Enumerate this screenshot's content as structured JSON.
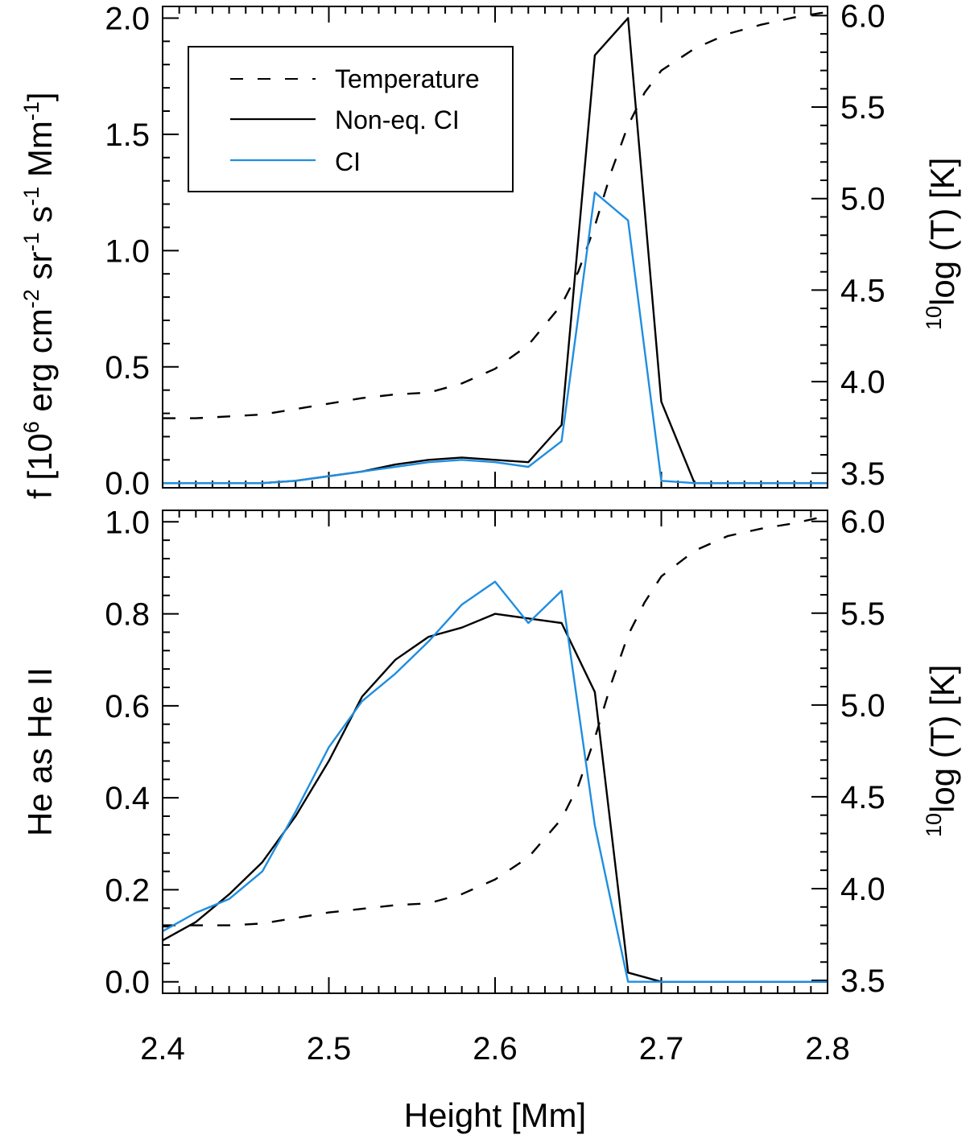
{
  "chart_data": [
    {
      "type": "line",
      "panel": "top",
      "title": "",
      "xlabel": "",
      "ylabel": "f [10^6 erg cm^-2 sr^-1 s^-1 Mm^-1]",
      "ylabel_parts": {
        "prefix": "f [10",
        "e1": "6",
        "t2": " erg cm",
        "e2": "-2",
        "t3": " sr",
        "e3": "-1",
        "t4": " s",
        "e4": "-1",
        "t5": " Mm",
        "e5": "-1",
        "suffix": "]"
      },
      "y2label": "10log (T) [K]",
      "y2label_parts": {
        "sup": "10",
        "text": "log (T) [K]"
      },
      "xlim": [
        2.4,
        2.8
      ],
      "ylim": [
        -0.02,
        2.05
      ],
      "y2lim": [
        3.42,
        6.05
      ],
      "yticks": [
        "0.0",
        "0.5",
        "1.0",
        "1.5",
        "2.0"
      ],
      "y2ticks": [
        "3.5",
        "4.0",
        "4.5",
        "5.0",
        "5.5",
        "6.0"
      ],
      "legend": {
        "position": "top-left",
        "entries": [
          "Temperature",
          "Non-eq. CI",
          "CI"
        ]
      },
      "series": [
        {
          "name": "Temperature",
          "axis": "right",
          "style": "dashed",
          "color": "#000000",
          "x": [
            2.4,
            2.42,
            2.44,
            2.46,
            2.48,
            2.5,
            2.52,
            2.54,
            2.56,
            2.58,
            2.6,
            2.62,
            2.64,
            2.65,
            2.66,
            2.67,
            2.68,
            2.69,
            2.7,
            2.72,
            2.74,
            2.76,
            2.78,
            2.8
          ],
          "y": [
            3.8,
            3.8,
            3.81,
            3.82,
            3.85,
            3.88,
            3.91,
            3.93,
            3.94,
            3.99,
            4.07,
            4.2,
            4.42,
            4.6,
            4.85,
            5.15,
            5.4,
            5.58,
            5.7,
            5.82,
            5.9,
            5.95,
            5.99,
            6.02
          ]
        },
        {
          "name": "Non-eq. CI",
          "axis": "left",
          "style": "solid",
          "color": "#000000",
          "x": [
            2.4,
            2.42,
            2.44,
            2.46,
            2.48,
            2.5,
            2.52,
            2.54,
            2.56,
            2.58,
            2.6,
            2.62,
            2.64,
            2.66,
            2.68,
            2.7,
            2.72,
            2.74,
            2.76,
            2.78,
            2.8
          ],
          "y": [
            0.0,
            0.0,
            0.0,
            0.0,
            0.01,
            0.03,
            0.05,
            0.08,
            0.1,
            0.11,
            0.1,
            0.09,
            0.25,
            1.84,
            2.0,
            0.35,
            0.0,
            0.0,
            0.0,
            0.0,
            0.0
          ]
        },
        {
          "name": "CI",
          "axis": "left",
          "style": "solid",
          "color": "#1f8ee0",
          "x": [
            2.4,
            2.42,
            2.44,
            2.46,
            2.48,
            2.5,
            2.52,
            2.54,
            2.56,
            2.58,
            2.6,
            2.62,
            2.64,
            2.66,
            2.68,
            2.7,
            2.72,
            2.74,
            2.76,
            2.78,
            2.8
          ],
          "y": [
            0.0,
            0.0,
            0.0,
            0.0,
            0.01,
            0.03,
            0.05,
            0.07,
            0.09,
            0.1,
            0.09,
            0.07,
            0.18,
            1.25,
            1.13,
            0.01,
            0.0,
            0.0,
            0.0,
            0.0,
            0.0
          ]
        }
      ]
    },
    {
      "type": "line",
      "panel": "bottom",
      "title": "",
      "xlabel": "Height [Mm]",
      "ylabel": "He as He II",
      "y2label": "10log (T) [K]",
      "y2label_parts": {
        "sup": "10",
        "text": "log (T) [K]"
      },
      "xlim": [
        2.4,
        2.8
      ],
      "xticks": [
        "2.4",
        "2.5",
        "2.6",
        "2.7",
        "2.8"
      ],
      "ylim": [
        -0.025,
        1.025
      ],
      "y2lim": [
        3.43,
        6.06
      ],
      "yticks": [
        "0.0",
        "0.2",
        "0.4",
        "0.6",
        "0.8",
        "1.0"
      ],
      "y2ticks": [
        "3.5",
        "4.0",
        "4.5",
        "5.0",
        "5.5",
        "6.0"
      ],
      "series": [
        {
          "name": "Temperature",
          "axis": "right",
          "style": "dashed",
          "color": "#000000",
          "x": [
            2.4,
            2.42,
            2.44,
            2.46,
            2.48,
            2.5,
            2.52,
            2.54,
            2.56,
            2.58,
            2.6,
            2.62,
            2.64,
            2.65,
            2.66,
            2.67,
            2.68,
            2.69,
            2.7,
            2.72,
            2.74,
            2.76,
            2.78,
            2.8
          ],
          "y": [
            3.8,
            3.8,
            3.8,
            3.81,
            3.84,
            3.87,
            3.89,
            3.91,
            3.92,
            3.97,
            4.05,
            4.17,
            4.38,
            4.56,
            4.82,
            5.12,
            5.38,
            5.56,
            5.7,
            5.84,
            5.92,
            5.96,
            5.99,
            6.03
          ]
        },
        {
          "name": "Non-eq. CI",
          "axis": "left",
          "style": "solid",
          "color": "#000000",
          "x": [
            2.4,
            2.42,
            2.44,
            2.46,
            2.48,
            2.5,
            2.52,
            2.54,
            2.56,
            2.58,
            2.6,
            2.62,
            2.64,
            2.66,
            2.68,
            2.7,
            2.72,
            2.74,
            2.76,
            2.78,
            2.8
          ],
          "y": [
            0.09,
            0.13,
            0.19,
            0.26,
            0.36,
            0.48,
            0.62,
            0.7,
            0.75,
            0.77,
            0.8,
            0.79,
            0.78,
            0.63,
            0.02,
            0.0,
            0.0,
            0.0,
            0.0,
            0.0,
            0.0
          ]
        },
        {
          "name": "CI",
          "axis": "left",
          "style": "solid",
          "color": "#1f8ee0",
          "x": [
            2.4,
            2.42,
            2.44,
            2.46,
            2.48,
            2.5,
            2.52,
            2.54,
            2.56,
            2.58,
            2.6,
            2.62,
            2.64,
            2.66,
            2.68,
            2.7,
            2.72,
            2.74,
            2.76,
            2.78,
            2.8
          ],
          "y": [
            0.11,
            0.15,
            0.18,
            0.24,
            0.37,
            0.51,
            0.61,
            0.67,
            0.74,
            0.82,
            0.87,
            0.78,
            0.85,
            0.34,
            0.0,
            0.0,
            0.0,
            0.0,
            0.0,
            0.0,
            0.0
          ]
        }
      ]
    }
  ]
}
